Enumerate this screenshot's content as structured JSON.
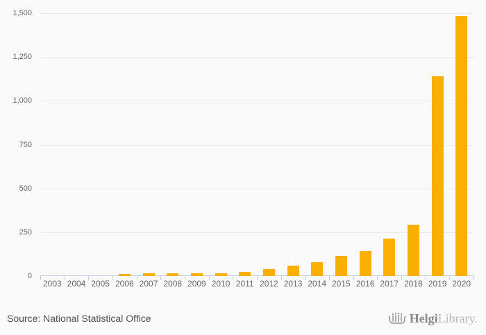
{
  "chart_data": {
    "type": "bar",
    "title": "",
    "xlabel": "",
    "ylabel": "",
    "categories": [
      "2003",
      "2004",
      "2005",
      "2006",
      "2007",
      "2008",
      "2009",
      "2010",
      "2011",
      "2012",
      "2013",
      "2014",
      "2015",
      "2016",
      "2017",
      "2018",
      "2019",
      "2020"
    ],
    "values": [
      0,
      0,
      0,
      12,
      17,
      16,
      15,
      16,
      22,
      41,
      58,
      80,
      115,
      143,
      215,
      292,
      1140,
      1485
    ],
    "ylim": [
      0,
      1500
    ],
    "ytick_step": 250,
    "ytick_labels": [
      "0",
      "250",
      "500",
      "750",
      "1,000",
      "1,250",
      "1,500"
    ],
    "grid": true,
    "legend": "none",
    "bar_color": "#fbaf00",
    "gridline_color": "#e9e9e9",
    "axis_color": "#c6cce2",
    "label_color": "#666666",
    "background_color": "#fafafa"
  },
  "footer": {
    "source_label": "Source: National Statistical Office",
    "logo": {
      "icon": "viking-ship-icon",
      "brand_primary": "Helgi",
      "brand_secondary": "Library."
    }
  }
}
